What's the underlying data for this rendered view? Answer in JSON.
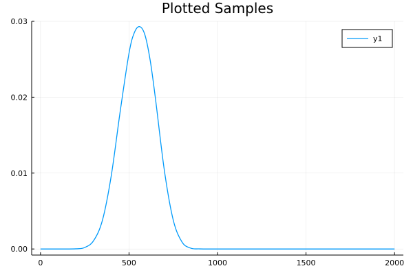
{
  "chart_data": {
    "type": "line",
    "title": "Plotted Samples",
    "xlabel": "",
    "ylabel": "",
    "xlim": [
      -50,
      2050
    ],
    "ylim": [
      -0.0008,
      0.03
    ],
    "x_ticks": [
      0,
      500,
      1000,
      1500,
      2000
    ],
    "x_tick_labels": [
      "0",
      "500",
      "1000",
      "1500",
      "2000"
    ],
    "y_ticks": [
      0.0,
      0.01,
      0.02,
      0.03
    ],
    "y_tick_labels": [
      "0.00",
      "0.01",
      "0.02",
      "0.03"
    ],
    "grid": true,
    "legend": {
      "placement": "top-right",
      "entries": [
        "y1"
      ]
    },
    "series": [
      {
        "name": "y1",
        "color": "#009AFA",
        "x": [
          0,
          100,
          200,
          250,
          300,
          350,
          400,
          450,
          500,
          530,
          560,
          590,
          620,
          650,
          700,
          750,
          800,
          850,
          900,
          1000,
          1250,
          1500,
          1750,
          2000
        ],
        "y": [
          0.0,
          0.0,
          2e-05,
          0.0002,
          0.0011,
          0.0038,
          0.0097,
          0.0181,
          0.0258,
          0.0285,
          0.0293,
          0.0282,
          0.0248,
          0.0197,
          0.0103,
          0.0038,
          0.0009,
          0.0001,
          1e-05,
          0.0,
          0.0,
          0.0,
          0.0,
          0.0
        ]
      }
    ]
  }
}
